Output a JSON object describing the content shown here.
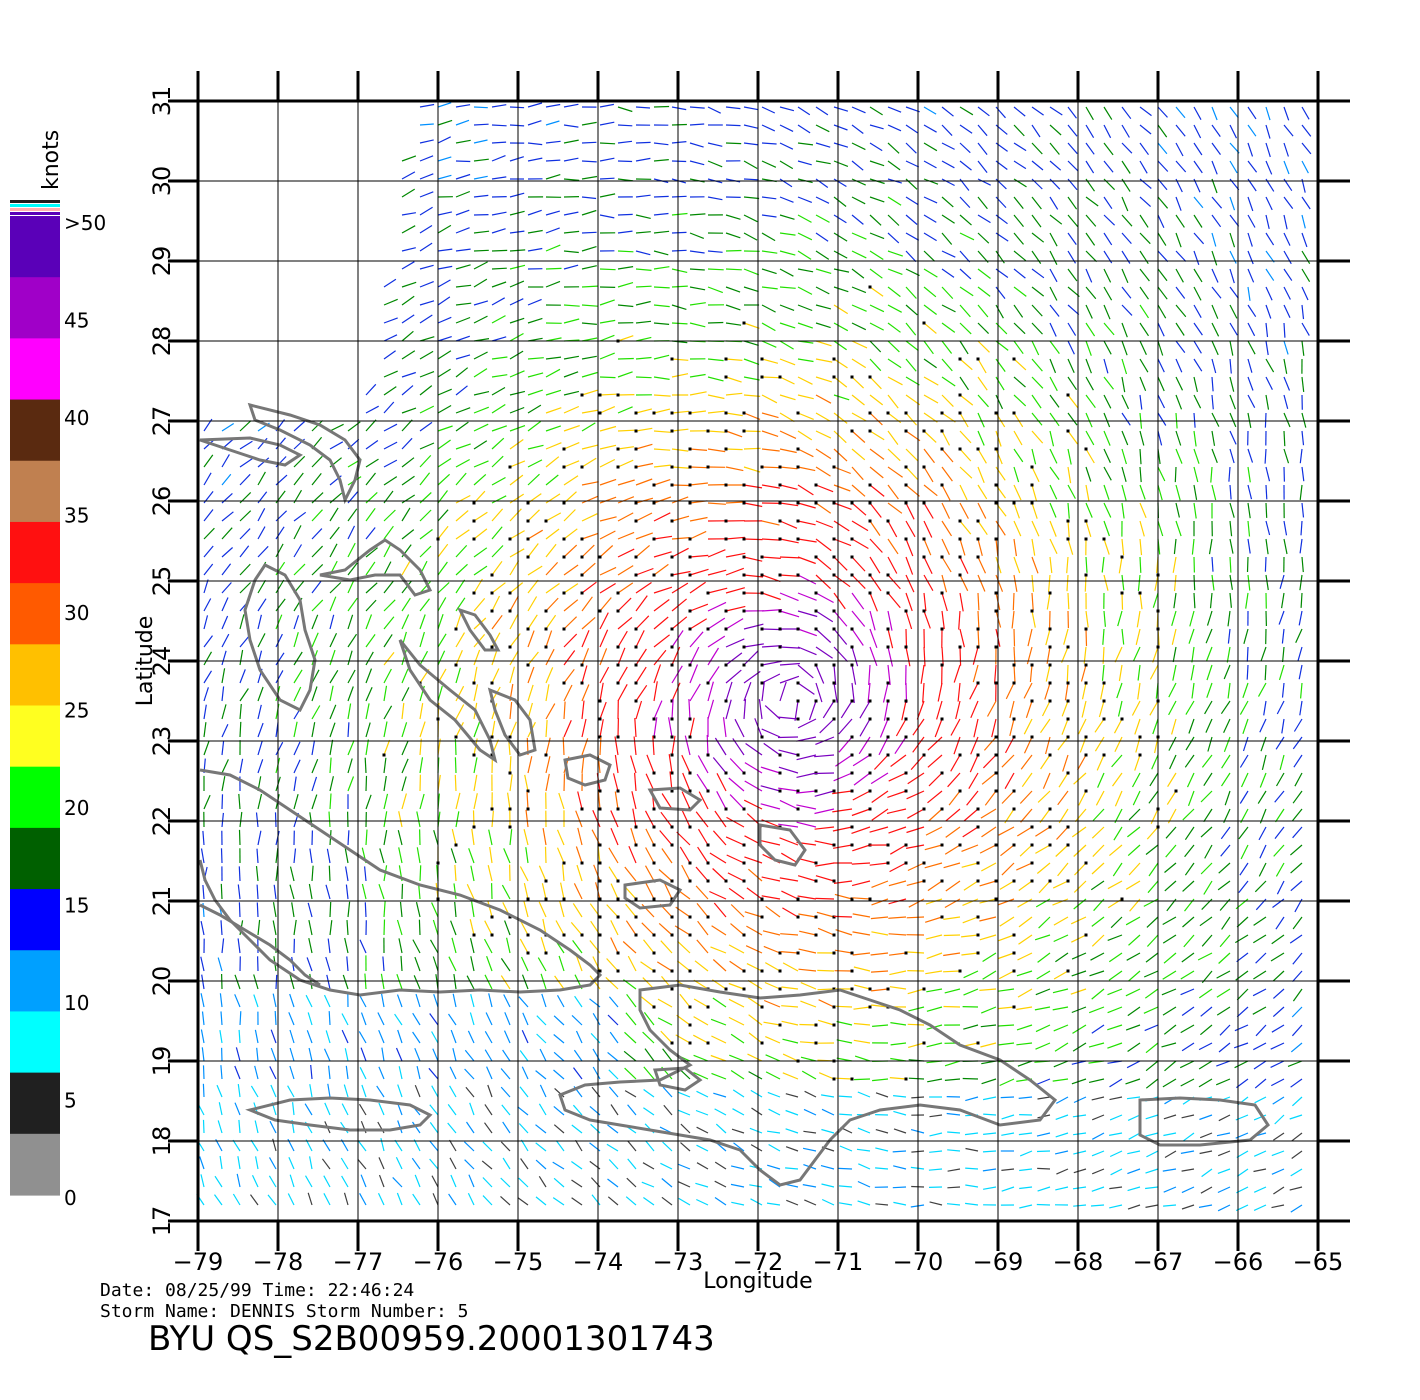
{
  "colorbar": {
    "title": "knots",
    "labels": [
      ">50",
      "45",
      "40",
      "35",
      "30",
      "25",
      "20",
      "15",
      "10",
      "5",
      "0"
    ],
    "colors": [
      "#5a00b8",
      "#a000c8",
      "#ff00ff",
      "#5a2a10",
      "#c08050",
      "#ff1010",
      "#ff5a00",
      "#ffc000",
      "#ffff20",
      "#00ff00",
      "#006000",
      "#0000ff",
      "#00a0ff",
      "#00ffff",
      "#202020",
      "#909090"
    ]
  },
  "axes": {
    "xlabel": "Longitude",
    "ylabel": "Latitude",
    "lon_ticks": [
      "-79",
      "-78",
      "-77",
      "-76",
      "-75",
      "-74",
      "-73",
      "-72",
      "-71",
      "-70",
      "-69",
      "-68",
      "-67",
      "-66",
      "-65"
    ],
    "lat_ticks": [
      "17",
      "18",
      "19",
      "20",
      "21",
      "22",
      "23",
      "24",
      "25",
      "26",
      "27",
      "28",
      "29",
      "30",
      "31"
    ],
    "lon_range": [
      -79,
      -65
    ],
    "lat_range": [
      17,
      31
    ],
    "grid": true
  },
  "info": {
    "date_line": "Date: 08/25/99   Time: 22:46:24",
    "storm_line": "Storm  Name: DENNIS   Storm  Number: 5",
    "product": "BYU  QS_S2B00959.20001301743"
  },
  "map": {
    "coast_color": "#777777",
    "storm_center": {
      "lon": -71.6,
      "lat": 23.5
    }
  }
}
